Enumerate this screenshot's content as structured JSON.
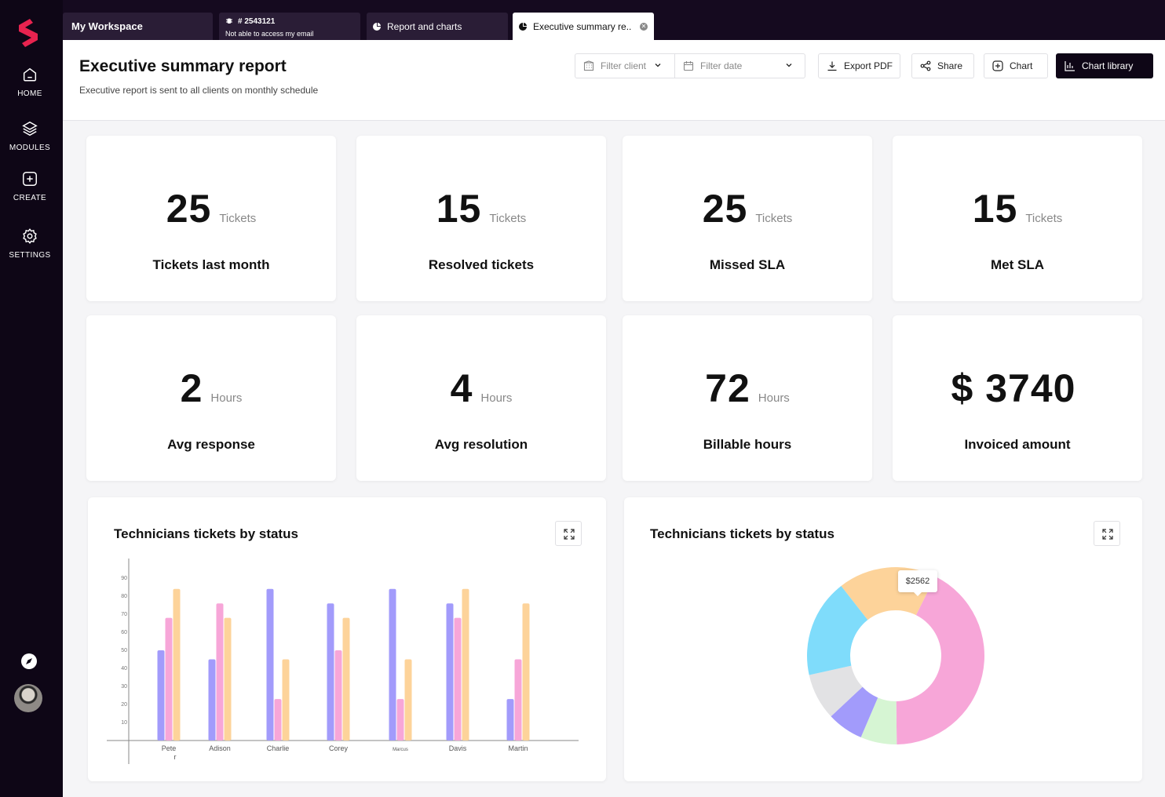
{
  "sidebar": {
    "items": [
      {
        "label": "HOME",
        "icon": "home-icon"
      },
      {
        "label": "MODULES",
        "icon": "layers-icon"
      },
      {
        "label": "CREATE",
        "icon": "plus-square-icon"
      },
      {
        "label": "SETTINGS",
        "icon": "gear-icon"
      }
    ],
    "bottom_icons": [
      "compass-icon",
      "user-avatar"
    ]
  },
  "tabs": {
    "workspace": "My Workspace",
    "ticket_number": "# 2543121",
    "ticket_title": "Not able to access my email",
    "report": "Report and charts",
    "executive": "Executive summary re.."
  },
  "header": {
    "title": "Executive summary report",
    "subtitle": "Executive report is sent to all clients on monthly schedule",
    "filter_client": "Filter client",
    "filter_date": "Filter date",
    "export_pdf": "Export PDF",
    "share": "Share",
    "chart": "Chart",
    "chart_library": "Chart library"
  },
  "stats": [
    {
      "value": "25",
      "unit": "Tickets",
      "label": "Tickets last month"
    },
    {
      "value": "15",
      "unit": "Tickets",
      "label": "Resolved tickets"
    },
    {
      "value": "25",
      "unit": "Tickets",
      "label": "Missed SLA"
    },
    {
      "value": "15",
      "unit": "Tickets",
      "label": "Met SLA"
    },
    {
      "value": "2",
      "unit": "Hours",
      "label": "Avg response"
    },
    {
      "value": "4",
      "unit": "Hours",
      "label": "Avg resolution"
    },
    {
      "value": "72",
      "unit": "Hours",
      "label": "Billable hours"
    },
    {
      "value": "$ 3740",
      "unit": "",
      "label": "Invoiced amount"
    }
  ],
  "colors": {
    "purple": "#a29bfb",
    "pink": "#f7a6d8",
    "orange": "#fdd39a",
    "cyan": "#7fdcfb",
    "gray": "#e2e2e4",
    "green": "#d6f5d3",
    "brand": "#e8234f",
    "sidebar": "#0e0616"
  },
  "chart_data": [
    {
      "type": "bar",
      "title": "Technicians tickets by status",
      "categories": [
        "Pete r",
        "Adison",
        "Charlie",
        "Corey",
        "Marcus",
        "Davis",
        "Martin"
      ],
      "series": [
        {
          "values": [
            50,
            45,
            84,
            76,
            84,
            76,
            23
          ]
        },
        {
          "values": [
            68,
            76,
            23,
            50,
            23,
            68,
            45
          ]
        },
        {
          "values": [
            84,
            68,
            45,
            68,
            45,
            84,
            76
          ]
        }
      ],
      "yticks": [
        10,
        20,
        30,
        40,
        50,
        60,
        70,
        80,
        90
      ],
      "ylim": [
        0,
        100
      ],
      "xlabel": "",
      "ylabel": ""
    },
    {
      "type": "pie",
      "title": "Technicians tickets by status",
      "slices": [
        {
          "value": 19,
          "color": "#fdd39a"
        },
        {
          "value": 45,
          "color": "#f7a6d8"
        },
        {
          "value": 7,
          "color": "#d6f5d3"
        },
        {
          "value": 7,
          "color": "#a29bfb"
        },
        {
          "value": 9,
          "color": "#e2e2e4"
        },
        {
          "value": 19,
          "color": "#7fdcfb"
        }
      ],
      "tooltip": "$2562"
    }
  ]
}
